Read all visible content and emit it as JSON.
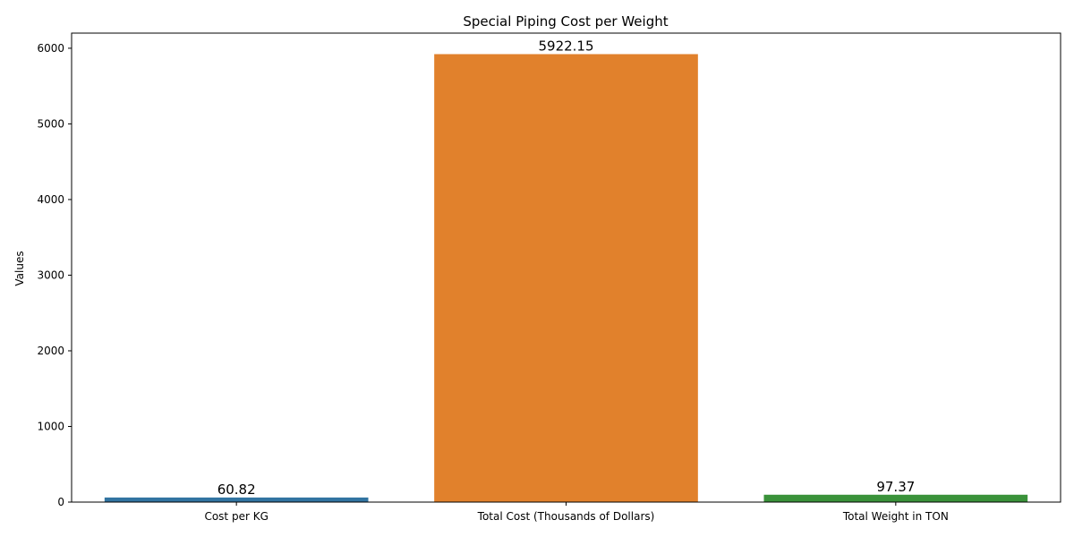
{
  "chart_data": {
    "type": "bar",
    "title": "Special Piping Cost per Weight",
    "xlabel": "",
    "ylabel": "Values",
    "categories": [
      "Cost per KG",
      "Total Cost (Thousands of Dollars)",
      "Total Weight in TON"
    ],
    "values": [
      60.82,
      5922.15,
      97.37
    ],
    "value_labels": [
      "60.82",
      "5922.15",
      "97.37"
    ],
    "colors": [
      "#3274a1",
      "#e1812c",
      "#3a923a"
    ],
    "ylim": [
      0,
      6200
    ],
    "yticks": [
      0,
      1000,
      2000,
      3000,
      4000,
      5000,
      6000
    ],
    "ytick_labels": [
      "0",
      "1000",
      "2000",
      "3000",
      "4000",
      "5000",
      "6000"
    ],
    "grid": false,
    "legend": "none"
  }
}
